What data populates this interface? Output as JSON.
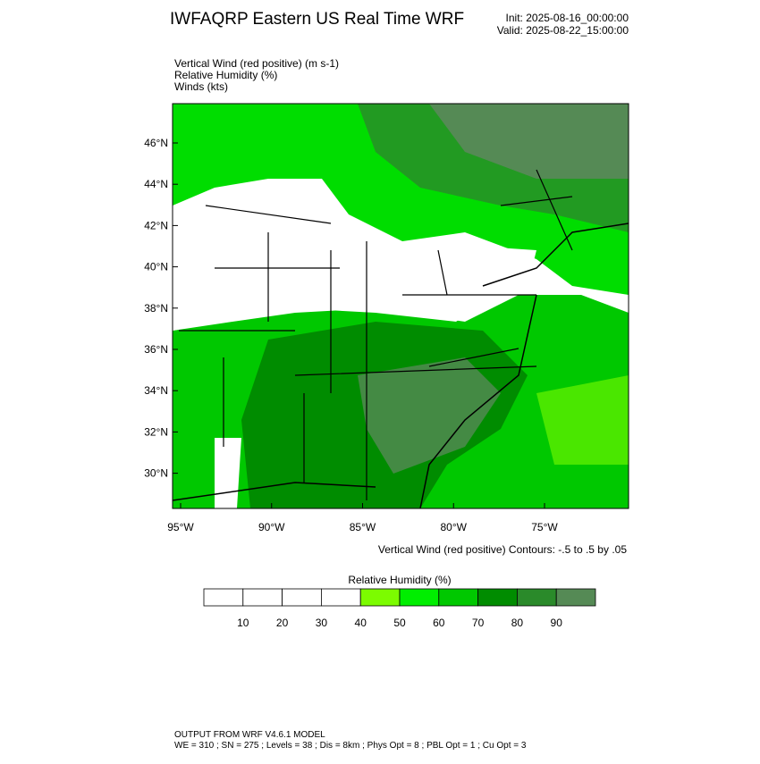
{
  "header": {
    "title": "IWFAQRP Eastern US Real Time WRF",
    "init": "Init: 2025-08-16_00:00:00",
    "valid": "Valid: 2025-08-22_15:00:00"
  },
  "fields": [
    "Vertical Wind (red positive)   (m s-1)",
    "Relative Humidity   (%)",
    "Winds   (kts)"
  ],
  "map": {
    "lat_ticks": [
      {
        "value": 46,
        "label": "46°N"
      },
      {
        "value": 44,
        "label": "44°N"
      },
      {
        "value": 42,
        "label": "42°N"
      },
      {
        "value": 40,
        "label": "40°N"
      },
      {
        "value": 38,
        "label": "38°N"
      },
      {
        "value": 36,
        "label": "36°N"
      },
      {
        "value": 34,
        "label": "34°N"
      },
      {
        "value": 32,
        "label": "32°N"
      },
      {
        "value": 30,
        "label": "30°N"
      }
    ],
    "lon_ticks": [
      {
        "value": 95,
        "label": "95°W"
      },
      {
        "value": 90,
        "label": "90°W"
      },
      {
        "value": 85,
        "label": "85°W"
      },
      {
        "value": 80,
        "label": "80°W"
      },
      {
        "value": 75,
        "label": "75°W"
      }
    ],
    "contour_note": "Vertical Wind (red positive) Contours: -.5 to .5 by .05"
  },
  "colorbar": {
    "title": "Relative Humidity   (%)",
    "colors": [
      "#ffffff",
      "#ffffff",
      "#ffffff",
      "#ffffff",
      "#7cfc00",
      "#00ee00",
      "#00c800",
      "#008c00",
      "#2a8a2a",
      "#558a55"
    ],
    "labels": [
      10,
      20,
      30,
      40,
      50,
      60,
      70,
      80,
      90
    ]
  },
  "footer": [
    "OUTPUT FROM WRF V4.6.1 MODEL",
    "WE = 310 ; SN = 275 ; Levels = 38 ; Dis = 8km ; Phys Opt = 8 ; PBL Opt = 1 ; Cu Opt = 3"
  ]
}
